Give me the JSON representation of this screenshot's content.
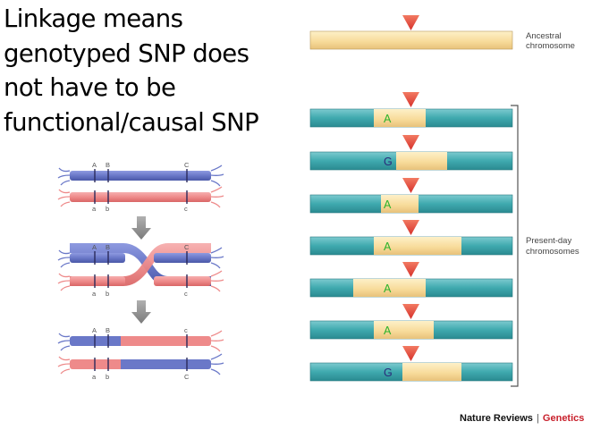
{
  "title_lines": [
    "Linkage means",
    "genotyped SNP does",
    "not have to be",
    "functional/causal SNP"
  ],
  "recombination": {
    "upper_loci": [
      "A",
      "B",
      "C"
    ],
    "lower_loci": [
      "a",
      "b",
      "c"
    ],
    "after_upper_loci": [
      "A",
      "B",
      "c"
    ],
    "after_lower_loci": [
      "a",
      "b",
      "C"
    ]
  },
  "ancestral_label": [
    "Ancestral",
    "chromosome"
  ],
  "present_day_label": [
    "Present-day",
    "chromosomes"
  ],
  "chromosome_alleles": [
    "A",
    "G",
    "A",
    "A",
    "A",
    "A",
    "G"
  ],
  "credit": {
    "publisher": "Nature Reviews",
    "separator": "|",
    "journal": "Genetics"
  },
  "colors": {
    "ancestral": "#f8dc9c",
    "teal": "#3fa9ae",
    "marker": "#e8463c",
    "blue_strand": "#6a78c8",
    "red_strand": "#ee8a8a",
    "allele_A": "#2bb32b",
    "allele_G": "#2a2a7a"
  }
}
